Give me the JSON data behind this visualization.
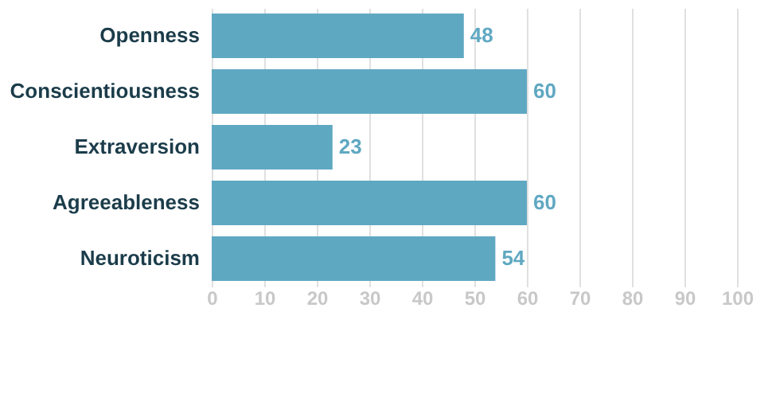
{
  "chart_data": {
    "type": "bar",
    "orientation": "horizontal",
    "categories": [
      "Openness",
      "Conscientiousness",
      "Extraversion",
      "Agreeableness",
      "Neuroticism"
    ],
    "values": [
      48,
      60,
      23,
      60,
      54
    ],
    "color": "#5fa8c2",
    "xlim": [
      0,
      100
    ],
    "xticks": [
      0,
      10,
      20,
      30,
      40,
      50,
      60,
      70,
      80,
      90,
      100
    ],
    "grid": "x",
    "data_labels": true
  }
}
